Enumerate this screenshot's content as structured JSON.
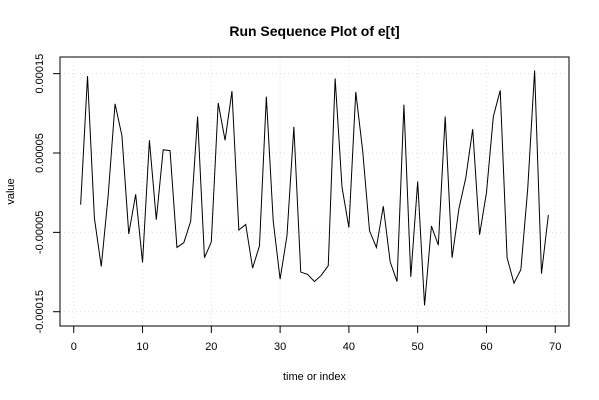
{
  "chart_data": {
    "type": "line",
    "title": "Run Sequence Plot of e[t]",
    "xlabel": "time or index",
    "ylabel": "value",
    "xlim": [
      -2,
      72
    ],
    "ylim": [
      -0.000168,
      0.000171
    ],
    "xticks": [
      0,
      10,
      20,
      30,
      40,
      50,
      60,
      70
    ],
    "yticks": [
      -0.00015,
      -5e-05,
      5e-05,
      0.00015
    ],
    "ytick_labels": [
      "-0.00015",
      "-0.00005",
      "0.00005",
      "0.00015"
    ],
    "grid": true,
    "series": [
      {
        "x": [
          1,
          2,
          3,
          4,
          5,
          6,
          7,
          8,
          9,
          10,
          11,
          12,
          13,
          14,
          15,
          16,
          17,
          18,
          19,
          20,
          21,
          22,
          23,
          24,
          25,
          26,
          27,
          28,
          29,
          30,
          31,
          32,
          33,
          34,
          35,
          36,
          37,
          38,
          39,
          40,
          41,
          42,
          43,
          44,
          45,
          46,
          47,
          48,
          49,
          50,
          51,
          52,
          53,
          54,
          55,
          56,
          57,
          58,
          59,
          60,
          61,
          62,
          63,
          64,
          65,
          66,
          67,
          68,
          69
        ],
        "values": [
          -1.5e-05,
          0.000147,
          -3.2e-05,
          -9.3e-05,
          -4e-06,
          0.000112,
          7.2e-05,
          -5.2e-05,
          -2e-06,
          -8.8e-05,
          6.6e-05,
          -3.4e-05,
          5.4e-05,
          5.3e-05,
          -6.9e-05,
          -6.3e-05,
          -3.6e-05,
          9.6e-05,
          -8.2e-05,
          -6.2e-05,
          0.000113,
          6.6e-05,
          0.000128,
          -4.7e-05,
          -4e-05,
          -9.5e-05,
          -6.7e-05,
          0.000121,
          -3.6e-05,
          -0.000109,
          -5.4e-05,
          8.3e-05,
          -0.0001,
          -0.000103,
          -0.000112,
          -0.000104,
          -9.2e-05,
          0.000144,
          7e-06,
          -4.4e-05,
          0.000127,
          5.3e-05,
          -4.8e-05,
          -6.9e-05,
          -1.7e-05,
          -8.7e-05,
          -0.000112,
          0.000111,
          -0.000106,
          1.4e-05,
          -0.000142,
          -4.2e-05,
          -6.6e-05,
          9.6e-05,
          -8.2e-05,
          -2e-05,
          1.9e-05,
          8e-05,
          -5.3e-05,
          -0.0,
          9.6e-05,
          0.000129,
          -8.2e-05,
          -0.000114,
          -9.7e-05,
          5e-06,
          0.000154,
          -0.000102,
          -2.8e-05
        ]
      }
    ]
  }
}
